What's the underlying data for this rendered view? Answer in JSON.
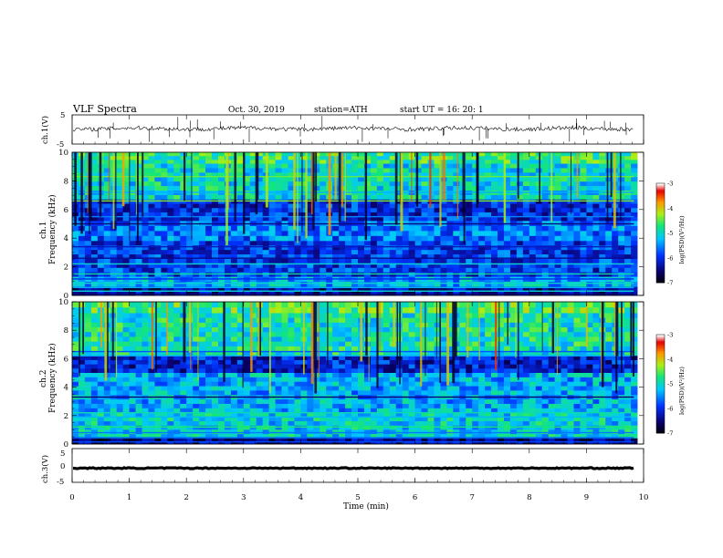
{
  "header": {
    "title": "VLF  Spectra",
    "date": "Oct. 30, 2019",
    "station": "station=ATH",
    "start_ut": "start  UT  =   16: 20: 1"
  },
  "chart_data": [
    {
      "type": "line",
      "name": "ch1-waveform",
      "ylabel": "ch.1(V)",
      "yticks": [
        "5",
        "-5"
      ],
      "ylim": [
        -5,
        5
      ],
      "xlim": [
        0,
        10
      ],
      "data_span_min": 9.83,
      "baseline_v": 0.3,
      "noise_amplitude_v": 0.7,
      "spike_min_v": -5,
      "spike_max_v": 5
    },
    {
      "type": "heatmap",
      "name": "ch1-spectrogram",
      "ylabel": "Frequency  (kHz)",
      "channel_label": "ch.1",
      "yticks": [
        "0",
        "2",
        "4",
        "6",
        "8",
        "10"
      ],
      "ylim": [
        0,
        10
      ],
      "xlim": [
        0,
        10
      ],
      "colorbar": {
        "label": "log(PSD)(V²/Hz)",
        "ticks": [
          "-3",
          "-4",
          "-5",
          "-6",
          "-7"
        ],
        "range": [
          -7,
          -3
        ]
      },
      "bands_khz": [
        {
          "from": 9.2,
          "to": 10.0,
          "log_psd": -4.7
        },
        {
          "from": 6.7,
          "to": 9.2,
          "log_psd": -5.0
        },
        {
          "from": 5.2,
          "to": 6.7,
          "log_psd": -6.0
        },
        {
          "from": 3.8,
          "to": 5.2,
          "log_psd": -5.6
        },
        {
          "from": 1.3,
          "to": 3.8,
          "log_psd": -5.9
        },
        {
          "from": 0.6,
          "to": 1.3,
          "log_psd": -5.3
        },
        {
          "from": 0.0,
          "to": 0.6,
          "log_psd": -6.3
        }
      ],
      "lines_khz": [
        0.1,
        0.3,
        0.55,
        0.85,
        1.15,
        1.5,
        2.2,
        2.6,
        3.4,
        5.0,
        5.5,
        6.6,
        7.2,
        8.3
      ]
    },
    {
      "type": "heatmap",
      "name": "ch2-spectrogram",
      "ylabel": "Frequency  (kHz)",
      "channel_label": "ch.2",
      "yticks": [
        "0",
        "2",
        "4",
        "6",
        "8",
        "10"
      ],
      "ylim": [
        0,
        10
      ],
      "xlim": [
        0,
        10
      ],
      "colorbar": {
        "label": "log(PSD)(V²/Hz)",
        "ticks": [
          "-3",
          "-4",
          "-5",
          "-6",
          "-7"
        ],
        "range": [
          -7,
          -3
        ]
      },
      "bands_khz": [
        {
          "from": 9.2,
          "to": 10.0,
          "log_psd": -4.6
        },
        {
          "from": 6.2,
          "to": 9.2,
          "log_psd": -4.9
        },
        {
          "from": 5.0,
          "to": 6.2,
          "log_psd": -6.1
        },
        {
          "from": 2.2,
          "to": 5.0,
          "log_psd": -5.3
        },
        {
          "from": 0.4,
          "to": 2.2,
          "log_psd": -5.1
        },
        {
          "from": 0.0,
          "to": 0.4,
          "log_psd": -6.4
        }
      ],
      "lines_khz": [
        0.15,
        0.45,
        0.8,
        1.2,
        1.9,
        2.2,
        3.3,
        6.2,
        6.5
      ]
    },
    {
      "type": "line",
      "name": "ch3-waveform",
      "ylabel": "ch.3(V)",
      "yticks": [
        "5",
        "0",
        "-5"
      ],
      "ylim": [
        -5,
        5
      ],
      "xlim": [
        0,
        10
      ],
      "data_span_min": 9.83,
      "baseline_v": -0.8,
      "noise_amplitude_v": 0.15
    }
  ],
  "xaxis": {
    "label": "Time  (min)",
    "ticks": [
      "0",
      "1",
      "2",
      "3",
      "4",
      "5",
      "6",
      "7",
      "8",
      "9",
      "10"
    ],
    "range": [
      0,
      10
    ]
  }
}
